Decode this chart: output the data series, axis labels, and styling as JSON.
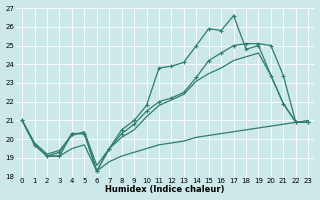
{
  "xlabel": "Humidex (Indice chaleur)",
  "xlim": [
    -0.5,
    23.5
  ],
  "ylim": [
    18,
    27
  ],
  "yticks": [
    18,
    19,
    20,
    21,
    22,
    23,
    24,
    25,
    26,
    27
  ],
  "xticks": [
    0,
    1,
    2,
    3,
    4,
    5,
    6,
    7,
    8,
    9,
    10,
    11,
    12,
    13,
    14,
    15,
    16,
    17,
    18,
    19,
    20,
    21,
    22,
    23
  ],
  "bg_color": "#cce8e8",
  "grid_color": "#b8d8d8",
  "line_color": "#2e7d6e",
  "s1_x": [
    0,
    1,
    2,
    3,
    4,
    5,
    6,
    7,
    8,
    9,
    10,
    11,
    12,
    13,
    14,
    15,
    16,
    17,
    18,
    19,
    20,
    21,
    22,
    23
  ],
  "s1_y": [
    21.0,
    19.7,
    19.1,
    19.1,
    20.3,
    20.3,
    18.3,
    19.5,
    20.5,
    21.0,
    21.8,
    23.8,
    23.9,
    24.1,
    25.0,
    25.9,
    25.8,
    26.6,
    24.8,
    25.0,
    23.4,
    21.9,
    20.9,
    20.9
  ],
  "s2_x": [
    0,
    1,
    2,
    3,
    4,
    5,
    6,
    7,
    8,
    9,
    10,
    11,
    12,
    13,
    14,
    15,
    16,
    17,
    18,
    19,
    20,
    21,
    22,
    23
  ],
  "s2_y": [
    21.0,
    19.7,
    19.1,
    19.3,
    20.3,
    20.3,
    18.3,
    19.5,
    20.3,
    20.8,
    21.5,
    22.0,
    22.2,
    22.5,
    23.3,
    24.2,
    24.6,
    25.0,
    25.1,
    25.1,
    25.0,
    23.4,
    20.9,
    20.9
  ],
  "s3_x": [
    0,
    1,
    2,
    3,
    4,
    5,
    6,
    7,
    8,
    9,
    10,
    11,
    12,
    13,
    14,
    15,
    16,
    17,
    18,
    19,
    20,
    21,
    22,
    23
  ],
  "s3_y": [
    21.0,
    19.7,
    19.1,
    19.1,
    19.5,
    19.7,
    18.3,
    18.8,
    19.1,
    19.3,
    19.5,
    19.7,
    19.8,
    19.9,
    20.1,
    20.2,
    20.3,
    20.4,
    20.5,
    20.6,
    20.7,
    20.8,
    20.9,
    21.0
  ],
  "s4_x": [
    0,
    1,
    2,
    3,
    4,
    5,
    6,
    7,
    8,
    9,
    10,
    11,
    12,
    13,
    14,
    15,
    16,
    17,
    18,
    19,
    20,
    21,
    22,
    23
  ],
  "s4_y": [
    21.0,
    19.8,
    19.2,
    19.4,
    20.2,
    20.4,
    18.6,
    19.5,
    20.1,
    20.5,
    21.2,
    21.8,
    22.1,
    22.4,
    23.1,
    23.5,
    23.8,
    24.2,
    24.4,
    24.6,
    23.4,
    21.9,
    20.9,
    20.9
  ]
}
